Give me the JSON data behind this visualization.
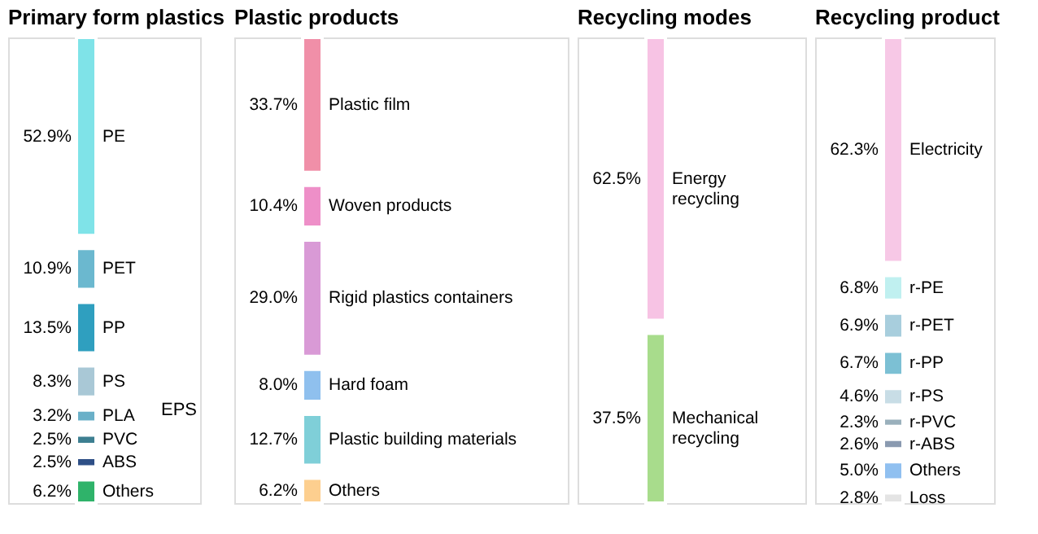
{
  "chart_data": [
    {
      "type": "other",
      "title": "Primary form plastics",
      "categories": [
        "PE",
        "PET",
        "PP",
        "PS",
        "PLA",
        "PVC",
        "ABS",
        "Others"
      ],
      "values": [
        52.9,
        10.9,
        13.5,
        8.3,
        3.2,
        2.5,
        2.5,
        6.2
      ],
      "value_labels": [
        "52.9%",
        "10.9%",
        "13.5%",
        "8.3%",
        "3.2%",
        "2.5%",
        "2.5%",
        "6.2%"
      ],
      "colors": [
        "#7fe3e8",
        "#6bb8cf",
        "#2f9fbf",
        "#a9c8d6",
        "#6ab0c8",
        "#3d7f91",
        "#2e4f86",
        "#2fb36a"
      ],
      "annotations": [
        "EPS"
      ]
    },
    {
      "type": "other",
      "title": "Plastic products",
      "categories": [
        "Plastic film",
        "Woven products",
        "Rigid plastics containers",
        "Hard foam",
        "Plastic building materials",
        "Others"
      ],
      "values": [
        33.7,
        10.4,
        29.0,
        8.0,
        12.7,
        6.2
      ],
      "value_labels": [
        "33.7%",
        "10.4%",
        "29.0%",
        "8.0%",
        "12.7%",
        "6.2%"
      ],
      "colors": [
        "#f08fa8",
        "#ee8fc8",
        "#d99ad6",
        "#8fc0ee",
        "#7fcfd8",
        "#fdcf8f"
      ]
    },
    {
      "type": "other",
      "title": "Recycling modes",
      "categories": [
        "Energy recycling",
        "Mechanical recycling"
      ],
      "values": [
        62.5,
        37.5
      ],
      "value_labels": [
        "62.5%",
        "37.5%"
      ],
      "colors": [
        "#f7c3e4",
        "#a8dc8c"
      ]
    },
    {
      "type": "other",
      "title": "Recycling product",
      "categories": [
        "Electricity",
        "r-PE",
        "r-PET",
        "r-PP",
        "r-PS",
        "r-PVC",
        "r-ABS",
        "Others",
        "Loss"
      ],
      "values": [
        62.3,
        6.8,
        6.9,
        6.7,
        4.6,
        2.3,
        2.6,
        5.0,
        2.8
      ],
      "value_labels": [
        "62.3%",
        "6.8%",
        "6.9%",
        "6.7%",
        "4.6%",
        "2.3%",
        "2.6%",
        "5.0%",
        "2.8%"
      ],
      "colors": [
        "#f7c8e6",
        "#c0f0f0",
        "#a8cedd",
        "#7cc0d4",
        "#c8dde6",
        "#9ab0bc",
        "#8a9ab0",
        "#90c0f0",
        "#e4e4e4"
      ]
    }
  ]
}
